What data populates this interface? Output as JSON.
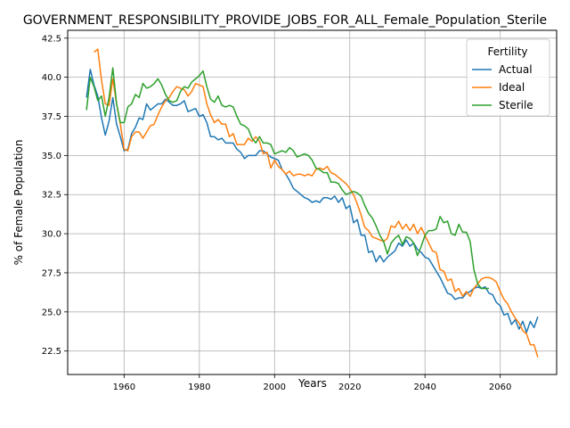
{
  "chart_data": {
    "type": "line",
    "title": "GOVERNMENT_RESPONSIBILITY_PROVIDE_JOBS_FOR_ALL_Female_Population_Sterile",
    "xlabel": "Years",
    "ylabel": "% of Female Population",
    "xlim": [
      1945,
      2075
    ],
    "ylim": [
      21,
      43
    ],
    "xticks": [
      1960,
      1980,
      2000,
      2020,
      2040,
      2060
    ],
    "yticks": [
      22.5,
      25.0,
      27.5,
      30.0,
      32.5,
      35.0,
      37.5,
      40.0,
      42.5
    ],
    "xtick_labels": [
      "1960",
      "1980",
      "2000",
      "2020",
      "2040",
      "2060"
    ],
    "ytick_labels": [
      "22.5",
      "25.0",
      "27.5",
      "30.0",
      "32.5",
      "35.0",
      "37.5",
      "40.0",
      "42.5"
    ],
    "grid": true,
    "legend": {
      "title": "Fertility",
      "position": "top-right"
    },
    "series": [
      {
        "name": "Actual",
        "color": "#1f77b4",
        "x": [
          1950,
          1951,
          1952,
          1953,
          1954,
          1955,
          1956,
          1957,
          1958,
          1959,
          1960,
          1961,
          1962,
          1963,
          1964,
          1965,
          1966,
          1967,
          1968,
          1969,
          1970,
          1971,
          1972,
          1973,
          1974,
          1975,
          1976,
          1977,
          1978,
          1979,
          1980,
          1981,
          1982,
          1983,
          1984,
          1985,
          1986,
          1987,
          1988,
          1989,
          1990,
          1991,
          1992,
          1993,
          1994,
          1995,
          1996,
          1997,
          1998,
          1999,
          2000,
          2001,
          2002,
          2003,
          2004,
          2005,
          2006,
          2007,
          2008,
          2009,
          2010,
          2011,
          2012,
          2013,
          2014,
          2015,
          2016,
          2017,
          2018,
          2019,
          2020,
          2021,
          2022,
          2023,
          2024,
          2025,
          2026,
          2027,
          2028,
          2029,
          2030,
          2031,
          2032,
          2033,
          2034,
          2035,
          2036,
          2037,
          2038,
          2039,
          2040,
          2041,
          2042,
          2043,
          2044,
          2045,
          2046,
          2047,
          2048,
          2049,
          2050,
          2051,
          2052,
          2053,
          2054,
          2055,
          2056,
          2057,
          2058,
          2059,
          2060,
          2061,
          2062,
          2063,
          2064,
          2065,
          2066,
          2067,
          2068,
          2069,
          2070
        ],
        "y": [
          38.7,
          40.5,
          39.5,
          38.8,
          37.4,
          36.3,
          37.2,
          38.7,
          37.0,
          36.2,
          35.3,
          35.4,
          36.4,
          36.8,
          37.4,
          37.3,
          38.3,
          37.9,
          38.1,
          38.3,
          38.3,
          38.6,
          38.4,
          38.2,
          38.2,
          38.3,
          38.5,
          37.8,
          37.9,
          38.0,
          37.5,
          37.6,
          37.1,
          36.2,
          36.2,
          36.0,
          36.1,
          35.8,
          35.8,
          35.8,
          35.4,
          35.2,
          34.8,
          35.0,
          35.0,
          35.0,
          35.3,
          35.3,
          35.1,
          34.9,
          34.8,
          34.7,
          34.1,
          33.8,
          33.4,
          32.9,
          32.7,
          32.5,
          32.3,
          32.2,
          32.0,
          32.1,
          32.0,
          32.3,
          32.3,
          32.2,
          32.4,
          32.0,
          32.3,
          31.6,
          31.8,
          30.7,
          30.9,
          29.9,
          29.9,
          28.8,
          28.9,
          28.2,
          28.6,
          28.2,
          28.5,
          28.7,
          28.9,
          29.4,
          29.2,
          29.6,
          29.2,
          29.4,
          29.0,
          28.8,
          28.5,
          28.4,
          28.0,
          27.6,
          27.2,
          26.7,
          26.2,
          26.1,
          25.8,
          25.9,
          25.9,
          26.2,
          26.3,
          26.5,
          26.6,
          26.5,
          26.6,
          26.2,
          26.1,
          25.6,
          25.4,
          24.8,
          24.9,
          24.2,
          24.5,
          23.9,
          24.4,
          23.7,
          24.4,
          24.0,
          24.7
        ]
      },
      {
        "name": "Ideal",
        "color": "#ff7f0e",
        "x": [
          1952,
          1953,
          1954,
          1955,
          1956,
          1957,
          1958,
          1959,
          1960,
          1961,
          1962,
          1963,
          1964,
          1965,
          1966,
          1967,
          1968,
          1969,
          1970,
          1971,
          1972,
          1973,
          1974,
          1975,
          1976,
          1977,
          1978,
          1979,
          1980,
          1981,
          1982,
          1983,
          1984,
          1985,
          1986,
          1987,
          1988,
          1989,
          1990,
          1991,
          1992,
          1993,
          1994,
          1995,
          1996,
          1997,
          1998,
          1999,
          2000,
          2001,
          2002,
          2003,
          2004,
          2005,
          2006,
          2007,
          2008,
          2009,
          2010,
          2011,
          2012,
          2013,
          2014,
          2015,
          2016,
          2017,
          2018,
          2019,
          2020,
          2021,
          2022,
          2023,
          2024,
          2025,
          2026,
          2027,
          2028,
          2029,
          2030,
          2031,
          2032,
          2033,
          2034,
          2035,
          2036,
          2037,
          2038,
          2039,
          2040,
          2041,
          2042,
          2043,
          2044,
          2045,
          2046,
          2047,
          2048,
          2049,
          2050,
          2051,
          2052,
          2053,
          2054,
          2055,
          2056,
          2057,
          2058,
          2059,
          2060,
          2061,
          2062,
          2063,
          2064,
          2065,
          2066,
          2067,
          2068,
          2069,
          2070
        ],
        "y": [
          41.6,
          41.8,
          39.8,
          38.3,
          38.2,
          39.9,
          38.3,
          37.0,
          35.4,
          35.3,
          36.2,
          36.5,
          36.5,
          36.1,
          36.5,
          36.9,
          37.0,
          37.6,
          38.1,
          38.5,
          38.7,
          39.1,
          39.4,
          39.3,
          39.2,
          38.8,
          39.1,
          39.6,
          39.5,
          39.4,
          38.3,
          37.6,
          37.1,
          37.3,
          37.0,
          37.0,
          36.2,
          36.4,
          35.7,
          35.7,
          35.7,
          36.1,
          35.9,
          36.2,
          35.9,
          35.1,
          35.2,
          34.2,
          34.7,
          34.3,
          34.1,
          33.8,
          34.0,
          33.7,
          33.8,
          33.8,
          33.7,
          33.8,
          33.7,
          34.1,
          34.2,
          34.1,
          34.3,
          33.9,
          33.8,
          33.6,
          33.4,
          33.2,
          32.9,
          32.5,
          31.9,
          31.2,
          30.4,
          30.2,
          29.8,
          29.7,
          29.6,
          29.5,
          29.7,
          30.5,
          30.4,
          30.8,
          30.3,
          30.6,
          30.2,
          30.6,
          30.0,
          30.4,
          29.9,
          29.4,
          28.9,
          28.8,
          27.7,
          27.6,
          27.0,
          27.1,
          26.3,
          26.5,
          26.0,
          26.3,
          26.0,
          26.5,
          26.8,
          27.1,
          27.2,
          27.2,
          27.1,
          26.9,
          26.3,
          25.8,
          25.5,
          25.0,
          24.6,
          24.3,
          23.8,
          23.6,
          22.9,
          22.9,
          22.1
        ]
      },
      {
        "name": "Sterile",
        "color": "#2ca02c",
        "x": [
          1950,
          1951,
          1952,
          1953,
          1954,
          1955,
          1956,
          1957,
          1958,
          1959,
          1960,
          1961,
          1962,
          1963,
          1964,
          1965,
          1966,
          1967,
          1968,
          1969,
          1970,
          1971,
          1972,
          1973,
          1974,
          1975,
          1976,
          1977,
          1978,
          1979,
          1980,
          1981,
          1982,
          1983,
          1984,
          1985,
          1986,
          1987,
          1988,
          1989,
          1990,
          1991,
          1992,
          1993,
          1994,
          1995,
          1996,
          1997,
          1998,
          1999,
          2000,
          2001,
          2002,
          2003,
          2004,
          2005,
          2006,
          2007,
          2008,
          2009,
          2010,
          2011,
          2012,
          2013,
          2014,
          2015,
          2016,
          2017,
          2018,
          2019,
          2020,
          2021,
          2022,
          2023,
          2024,
          2025,
          2026,
          2027,
          2028,
          2029,
          2030,
          2031,
          2032,
          2033,
          2034,
          2035,
          2036,
          2037,
          2038,
          2039,
          2040,
          2041,
          2042,
          2043,
          2044,
          2045,
          2046,
          2047,
          2048,
          2049,
          2050,
          2051,
          2052,
          2053,
          2054,
          2055,
          2056,
          2057
        ],
        "y": [
          37.9,
          40.0,
          39.4,
          38.5,
          38.8,
          37.5,
          38.7,
          40.6,
          38.3,
          37.1,
          37.1,
          38.1,
          38.3,
          38.9,
          38.7,
          39.6,
          39.3,
          39.4,
          39.6,
          39.9,
          39.5,
          38.9,
          38.5,
          38.4,
          38.5,
          39.1,
          39.4,
          39.3,
          39.7,
          39.9,
          40.1,
          40.4,
          39.4,
          38.6,
          38.4,
          38.8,
          38.2,
          38.1,
          38.2,
          38.1,
          37.5,
          37.0,
          36.9,
          36.7,
          36.1,
          35.8,
          36.2,
          35.8,
          35.8,
          35.7,
          35.1,
          35.2,
          35.3,
          35.2,
          35.5,
          35.3,
          34.9,
          35.0,
          35.1,
          35.0,
          34.7,
          34.2,
          34.1,
          33.9,
          33.9,
          33.3,
          33.3,
          33.2,
          32.8,
          32.5,
          32.6,
          32.7,
          32.6,
          32.4,
          31.8,
          31.3,
          31.0,
          30.5,
          29.9,
          29.5,
          28.7,
          29.4,
          29.7,
          29.9,
          29.3,
          29.8,
          29.7,
          29.4,
          28.6,
          29.2,
          29.9,
          30.2,
          30.2,
          30.3,
          31.1,
          30.7,
          30.8,
          30.0,
          29.9,
          30.6,
          30.1,
          30.1,
          29.5,
          27.7,
          26.8,
          26.5,
          26.5,
          26.5
        ]
      }
    ]
  }
}
